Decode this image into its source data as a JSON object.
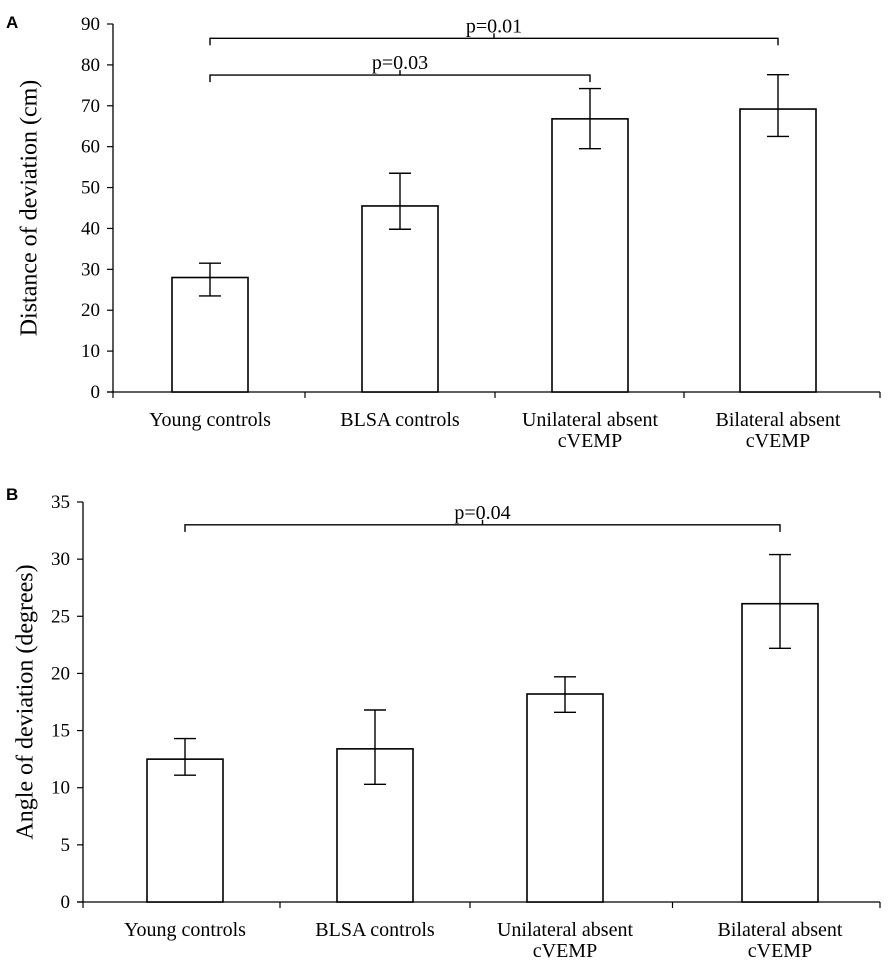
{
  "chart_data": [
    {
      "panel_label": "A",
      "type": "bar",
      "title": "",
      "xlabel": "",
      "ylabel": "Distance of deviation (cm)",
      "ylim": [
        0,
        90
      ],
      "yticks": [
        0,
        10,
        20,
        30,
        40,
        50,
        60,
        70,
        80,
        90
      ],
      "categories": [
        [
          "Young controls"
        ],
        [
          "BLSA controls"
        ],
        [
          "Unilateral absent",
          "cVEMP"
        ],
        [
          "Bilateral absent",
          "cVEMP"
        ]
      ],
      "values": [
        28,
        45.5,
        66.8,
        69.2
      ],
      "error_low": [
        23.5,
        39.8,
        59.5,
        62.5
      ],
      "error_high": [
        31.5,
        53.5,
        74.2,
        77.6
      ],
      "significance": [
        {
          "from": 0,
          "to": 3,
          "label": "p=0.01",
          "y": 86.5
        },
        {
          "from": 0,
          "to": 2,
          "label": "p=0.03",
          "y": 77.5
        }
      ]
    },
    {
      "panel_label": "B",
      "type": "bar",
      "title": "",
      "xlabel": "",
      "ylabel": "Angle of deviation (degrees)",
      "ylim": [
        0,
        35
      ],
      "yticks": [
        0,
        5,
        10,
        15,
        20,
        25,
        30,
        35
      ],
      "categories": [
        [
          "Young controls"
        ],
        [
          "BLSA controls"
        ],
        [
          "Unilateral absent",
          "cVEMP"
        ],
        [
          "Bilateral absent",
          "cVEMP"
        ]
      ],
      "values": [
        12.5,
        13.4,
        18.2,
        26.1
      ],
      "error_low": [
        11.1,
        10.3,
        16.6,
        22.2
      ],
      "error_high": [
        14.3,
        16.8,
        19.7,
        30.4
      ],
      "significance": [
        {
          "from": 0,
          "to": 3,
          "label": "p=0.04",
          "y": 33
        }
      ]
    }
  ]
}
